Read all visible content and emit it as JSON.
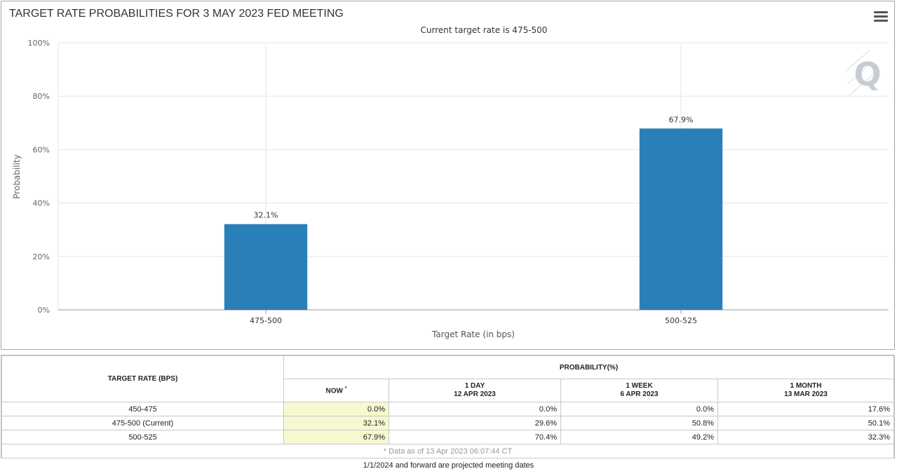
{
  "chart_data": {
    "type": "bar",
    "title": "TARGET RATE PROBABILITIES FOR 3 MAY 2023 FED MEETING",
    "subtitle": "Current target rate is 475-500",
    "xlabel": "Target Rate (in bps)",
    "ylabel": "Probability",
    "categories": [
      "475-500",
      "500-525"
    ],
    "values": [
      32.1,
      67.9
    ],
    "value_labels": [
      "32.1%",
      "67.9%"
    ],
    "ylim": [
      0,
      100
    ],
    "yticks": [
      "0%",
      "20%",
      "40%",
      "60%",
      "80%",
      "100%"
    ],
    "bar_color": "#2b7fb9",
    "grid": true,
    "legend": "none"
  },
  "menu": {
    "icon": "hamburger-menu-icon"
  },
  "watermark": {
    "icon": "q-logo-icon",
    "text": "Q"
  },
  "table": {
    "rate_header": "TARGET RATE (BPS)",
    "prob_header": "PROBABILITY(%)",
    "columns": [
      {
        "label": "NOW",
        "marker": "*",
        "sub": ""
      },
      {
        "label": "1 DAY",
        "sub": "12 APR 2023"
      },
      {
        "label": "1 WEEK",
        "sub": "6 APR 2023"
      },
      {
        "label": "1 MONTH",
        "sub": "13 MAR 2023"
      }
    ],
    "rows": [
      {
        "rate": "450-475",
        "now": "0.0%",
        "day": "0.0%",
        "week": "0.0%",
        "month": "17.6%"
      },
      {
        "rate": "475-500 (Current)",
        "now": "32.1%",
        "day": "29.6%",
        "week": "50.8%",
        "month": "50.1%"
      },
      {
        "rate": "500-525",
        "now": "67.9%",
        "day": "70.4%",
        "week": "49.2%",
        "month": "32.3%"
      }
    ],
    "note": "* Data as of 13 Apr 2023 06:07:44 CT"
  },
  "footer": "1/1/2024 and forward are projected meeting dates"
}
